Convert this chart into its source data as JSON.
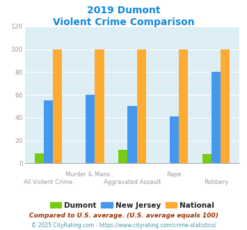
{
  "title_line1": "2019 Dumont",
  "title_line2": "Violent Crime Comparison",
  "dumont": [
    9,
    0,
    12,
    0,
    8
  ],
  "nj": [
    55,
    60,
    50,
    41,
    80
  ],
  "national": [
    100,
    100,
    100,
    100,
    100
  ],
  "color_dumont": "#77cc11",
  "color_nj": "#4499ee",
  "color_national": "#ffaa33",
  "ylim": [
    0,
    120
  ],
  "yticks": [
    0,
    20,
    40,
    60,
    80,
    100,
    120
  ],
  "title_color": "#1188dd",
  "title_fontsize": 10,
  "bg_color": "#ddeef5",
  "footnote1": "Compared to U.S. average. (U.S. average equals 100)",
  "footnote2": "© 2025 CityRating.com - https://www.cityrating.com/crime-statistics/",
  "footnote1_color": "#993300",
  "footnote2_color": "#4499aa",
  "legend_labels": [
    "Dumont",
    "New Jersey",
    "National"
  ],
  "bar_width": 0.22,
  "group_positions": [
    0,
    1,
    2,
    3,
    4
  ],
  "upper_xlabels": [
    [
      1,
      "Murder & Mans..."
    ],
    [
      3,
      "Rape"
    ]
  ],
  "lower_xlabels": [
    [
      0,
      "All Violent Crime"
    ],
    [
      2,
      "Aggravated Assault"
    ],
    [
      4,
      "Robbery"
    ]
  ]
}
